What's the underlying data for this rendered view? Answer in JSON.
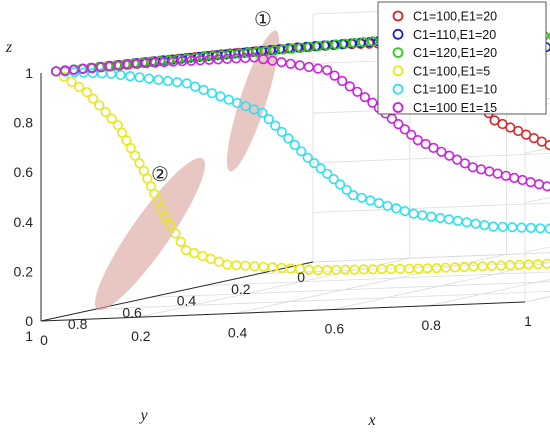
{
  "chart_data": {
    "type": "scatter3d",
    "xlabel": "x",
    "ylabel": "y",
    "zlabel": "z",
    "xlim": [
      0,
      1
    ],
    "ylim": [
      0,
      1
    ],
    "zlim": [
      0,
      1
    ],
    "xticks": [
      "0",
      "0.2",
      "0.4",
      "0.6",
      "0.8",
      "1"
    ],
    "yticks": [
      "0",
      "0.2",
      "0.4",
      "0.6",
      "0.8",
      "1"
    ],
    "zticks": [
      "0",
      "0.2",
      "0.4",
      "0.6",
      "0.8",
      "1"
    ],
    "grid": true,
    "legend_position": "top-right",
    "annotations": [
      "①",
      "②"
    ],
    "series": [
      {
        "name": "C1=100,E1=20",
        "color": "#d62728",
        "points": [
          [
            0.02,
            0.98,
            1.0
          ],
          [
            0.1,
            0.9,
            1.0
          ],
          [
            0.25,
            0.75,
            1.0
          ],
          [
            0.4,
            0.6,
            0.99
          ],
          [
            0.48,
            0.52,
            0.97
          ],
          [
            0.52,
            0.48,
            0.9
          ],
          [
            0.56,
            0.44,
            0.78
          ],
          [
            0.6,
            0.4,
            0.62
          ],
          [
            0.68,
            0.34,
            0.5
          ],
          [
            0.8,
            0.3,
            0.45
          ],
          [
            0.9,
            0.3,
            0.44
          ],
          [
            0.97,
            0.3,
            0.44
          ]
        ]
      },
      {
        "name": "C1=110,E1=20",
        "color": "#1f1fcf",
        "points": [
          [
            0.02,
            0.98,
            1.0
          ],
          [
            0.15,
            0.85,
            1.0
          ],
          [
            0.35,
            0.68,
            1.0
          ],
          [
            0.5,
            0.55,
            0.99
          ],
          [
            0.6,
            0.48,
            0.97
          ],
          [
            0.7,
            0.42,
            0.92
          ],
          [
            0.8,
            0.38,
            0.85
          ],
          [
            0.9,
            0.35,
            0.8
          ],
          [
            0.98,
            0.35,
            0.78
          ]
        ]
      },
      {
        "name": "C1=120,E1=20",
        "color": "#2ecc1a",
        "points": [
          [
            0.02,
            0.98,
            1.0
          ],
          [
            0.2,
            0.82,
            1.0
          ],
          [
            0.4,
            0.66,
            1.0
          ],
          [
            0.55,
            0.56,
            1.0
          ],
          [
            0.68,
            0.5,
            0.99
          ],
          [
            0.78,
            0.47,
            0.96
          ],
          [
            0.88,
            0.45,
            0.92
          ],
          [
            0.97,
            0.45,
            0.88
          ]
        ]
      },
      {
        "name": "C1=100,E1=5",
        "color": "#e8e81a",
        "points": [
          [
            0.02,
            0.98,
            1.0
          ],
          [
            0.05,
            0.92,
            0.9
          ],
          [
            0.08,
            0.86,
            0.75
          ],
          [
            0.1,
            0.8,
            0.55
          ],
          [
            0.11,
            0.74,
            0.35
          ],
          [
            0.12,
            0.68,
            0.2
          ],
          [
            0.16,
            0.6,
            0.12
          ],
          [
            0.28,
            0.48,
            0.06
          ],
          [
            0.45,
            0.38,
            0.03
          ],
          [
            0.65,
            0.33,
            0.02
          ],
          [
            0.85,
            0.32,
            0.02
          ],
          [
            0.96,
            0.32,
            0.02
          ]
        ]
      },
      {
        "name": "C1=100 E1=10",
        "color": "#2ee0f0",
        "points": [
          [
            0.02,
            0.98,
            1.0
          ],
          [
            0.1,
            0.92,
            0.97
          ],
          [
            0.2,
            0.82,
            0.9
          ],
          [
            0.3,
            0.72,
            0.75
          ],
          [
            0.36,
            0.66,
            0.55
          ],
          [
            0.42,
            0.6,
            0.38
          ],
          [
            0.5,
            0.52,
            0.28
          ],
          [
            0.62,
            0.44,
            0.2
          ],
          [
            0.78,
            0.38,
            0.16
          ],
          [
            0.92,
            0.36,
            0.15
          ],
          [
            0.98,
            0.36,
            0.15
          ]
        ]
      },
      {
        "name": "C1=100 E1=15",
        "color": "#cc22e0",
        "points": [
          [
            0.02,
            0.98,
            1.0
          ],
          [
            0.15,
            0.88,
            1.0
          ],
          [
            0.3,
            0.75,
            0.98
          ],
          [
            0.4,
            0.66,
            0.9
          ],
          [
            0.46,
            0.6,
            0.75
          ],
          [
            0.52,
            0.54,
            0.58
          ],
          [
            0.6,
            0.48,
            0.45
          ],
          [
            0.72,
            0.42,
            0.35
          ],
          [
            0.86,
            0.4,
            0.3
          ],
          [
            0.96,
            0.4,
            0.3
          ]
        ]
      }
    ]
  }
}
